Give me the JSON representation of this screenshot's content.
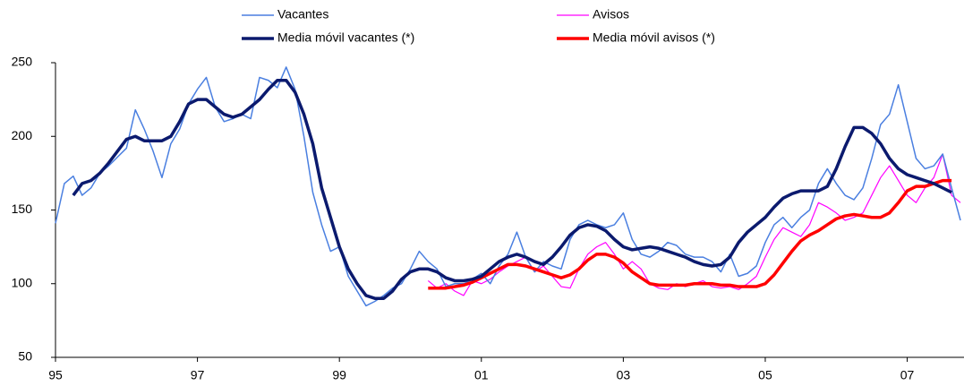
{
  "chart_data": {
    "type": "line",
    "x": [
      1995,
      1995.125,
      1995.25,
      1995.375,
      1995.5,
      1995.625,
      1995.75,
      1995.875,
      1996,
      1996.125,
      1996.25,
      1996.375,
      1996.5,
      1996.625,
      1996.75,
      1996.875,
      1997,
      1997.125,
      1997.25,
      1997.375,
      1997.5,
      1997.625,
      1997.75,
      1997.875,
      1998,
      1998.125,
      1998.25,
      1998.375,
      1998.5,
      1998.625,
      1998.75,
      1998.875,
      1999,
      1999.125,
      1999.25,
      1999.375,
      1999.5,
      1999.625,
      1999.75,
      1999.875,
      2000,
      2000.125,
      2000.25,
      2000.375,
      2000.5,
      2000.625,
      2000.75,
      2000.875,
      2001,
      2001.125,
      2001.25,
      2001.375,
      2001.5,
      2001.625,
      2001.75,
      2001.875,
      2002,
      2002.125,
      2002.25,
      2002.375,
      2002.5,
      2002.625,
      2002.75,
      2002.875,
      2003,
      2003.125,
      2003.25,
      2003.375,
      2003.5,
      2003.625,
      2003.75,
      2003.875,
      2004,
      2004.125,
      2004.25,
      2004.375,
      2004.5,
      2004.625,
      2004.75,
      2004.875,
      2005,
      2005.125,
      2005.25,
      2005.375,
      2005.5,
      2005.625,
      2005.75,
      2005.875,
      2006,
      2006.125,
      2006.25,
      2006.375,
      2006.5,
      2006.625,
      2006.75,
      2006.875,
      2007,
      2007.125,
      2007.25,
      2007.375,
      2007.5,
      2007.625,
      2007.75
    ],
    "series": [
      {
        "name": "Vacantes",
        "color": "#4a7fe0",
        "values": [
          141,
          168,
          173,
          160,
          165,
          175,
          180,
          186,
          192,
          218,
          205,
          190,
          172,
          195,
          205,
          222,
          232,
          240,
          220,
          210,
          212,
          215,
          212,
          240,
          238,
          233,
          247,
          232,
          200,
          162,
          140,
          122,
          125,
          105,
          95,
          85,
          88,
          92,
          97,
          100,
          110,
          122,
          115,
          110,
          98,
          100,
          100,
          103,
          107,
          100,
          112,
          120,
          135,
          118,
          108,
          115,
          112,
          110,
          130,
          140,
          143,
          140,
          138,
          140,
          148,
          130,
          120,
          118,
          122,
          128,
          126,
          120,
          118,
          118,
          115,
          108,
          120,
          105,
          107,
          112,
          128,
          140,
          145,
          138,
          145,
          150,
          168,
          178,
          168,
          160,
          157,
          165,
          185,
          208,
          215,
          235,
          210,
          185,
          178,
          180,
          188,
          165,
          143
        ]
      },
      {
        "name": "Avisos",
        "color": "#ff00ff",
        "values": [
          null,
          null,
          null,
          null,
          null,
          null,
          null,
          null,
          null,
          null,
          null,
          null,
          null,
          null,
          null,
          null,
          null,
          null,
          null,
          null,
          null,
          null,
          null,
          null,
          null,
          null,
          null,
          null,
          null,
          null,
          null,
          null,
          null,
          null,
          null,
          null,
          null,
          null,
          null,
          null,
          null,
          null,
          102,
          97,
          100,
          95,
          92,
          102,
          100,
          103,
          108,
          112,
          115,
          118,
          108,
          112,
          105,
          98,
          97,
          110,
          120,
          125,
          128,
          120,
          110,
          115,
          110,
          100,
          97,
          96,
          100,
          98,
          100,
          102,
          98,
          97,
          98,
          96,
          100,
          105,
          118,
          130,
          138,
          135,
          132,
          140,
          155,
          152,
          148,
          143,
          145,
          148,
          160,
          172,
          180,
          170,
          160,
          155,
          165,
          172,
          188,
          160,
          155
        ]
      },
      {
        "name": "Media móvil vacantes (*)",
        "color": "#0b1a6e",
        "values": [
          null,
          null,
          160,
          168,
          170,
          175,
          182,
          190,
          198,
          200,
          197,
          197,
          197,
          200,
          210,
          222,
          225,
          225,
          220,
          215,
          213,
          215,
          220,
          225,
          232,
          238,
          238,
          230,
          215,
          195,
          165,
          145,
          125,
          110,
          100,
          92,
          90,
          90,
          95,
          103,
          108,
          110,
          110,
          108,
          104,
          102,
          102,
          103,
          105,
          110,
          115,
          118,
          120,
          118,
          115,
          113,
          118,
          125,
          133,
          138,
          140,
          139,
          136,
          130,
          125,
          123,
          124,
          125,
          124,
          122,
          120,
          118,
          115,
          113,
          112,
          113,
          118,
          128,
          135,
          140,
          145,
          152,
          158,
          161,
          163,
          163,
          163,
          166,
          178,
          193,
          206,
          206,
          202,
          195,
          185,
          178,
          174,
          172,
          170,
          168,
          165,
          162,
          null
        ]
      },
      {
        "name": "Media móvil avisos (*)",
        "color": "#ff0000",
        "values": [
          null,
          null,
          null,
          null,
          null,
          null,
          null,
          null,
          null,
          null,
          null,
          null,
          null,
          null,
          null,
          null,
          null,
          null,
          null,
          null,
          null,
          null,
          null,
          null,
          null,
          null,
          null,
          null,
          null,
          null,
          null,
          null,
          null,
          null,
          null,
          null,
          null,
          null,
          null,
          null,
          null,
          null,
          97,
          97,
          97,
          98,
          99,
          101,
          104,
          107,
          110,
          113,
          113,
          112,
          110,
          108,
          106,
          104,
          106,
          110,
          116,
          120,
          120,
          118,
          114,
          108,
          104,
          100,
          99,
          99,
          99,
          99,
          100,
          100,
          100,
          99,
          99,
          98,
          98,
          98,
          100,
          106,
          114,
          122,
          129,
          133,
          136,
          140,
          144,
          146,
          147,
          146,
          145,
          145,
          148,
          155,
          163,
          166,
          166,
          168,
          170,
          170,
          null
        ]
      }
    ],
    "xlim": [
      1995,
      2007.8
    ],
    "xticks": [
      {
        "value": 1995,
        "label": "95"
      },
      {
        "value": 1997,
        "label": "97"
      },
      {
        "value": 1999,
        "label": "99"
      },
      {
        "value": 2001,
        "label": "01"
      },
      {
        "value": 2003,
        "label": "03"
      },
      {
        "value": 2005,
        "label": "05"
      },
      {
        "value": 2007,
        "label": "07"
      }
    ],
    "ylim": [
      50,
      250
    ],
    "yticks": [
      50,
      100,
      150,
      200,
      250
    ],
    "grid": false,
    "legend": "top"
  }
}
